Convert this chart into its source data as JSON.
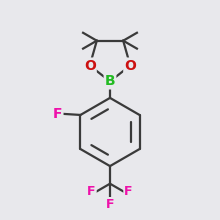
{
  "bg_color": "#e8e8ec",
  "bond_color": "#3a3a3a",
  "bond_width": 1.6,
  "atom_colors": {
    "B": "#22bb22",
    "O": "#cc1111",
    "F": "#ee11aa",
    "C": "#3a3a3a"
  },
  "fig_size": [
    2.2,
    2.2
  ],
  "dpi": 100
}
